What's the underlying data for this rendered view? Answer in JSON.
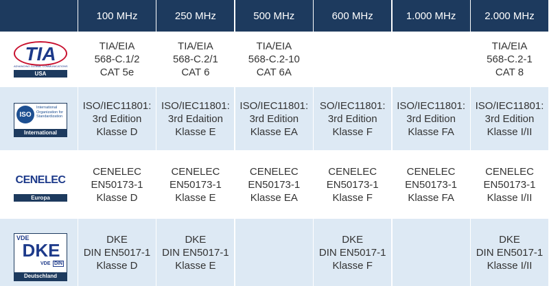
{
  "table": {
    "columns": [
      "100 MHz",
      "250 MHz",
      "500 MHz",
      "600 MHz",
      "1.000 MHz",
      "2.000 MHz"
    ],
    "rows": [
      {
        "logo": {
          "name": "TIA",
          "tagline": "ADVANCING GLOBAL COMMUNICATIONS"
        },
        "region": "USA",
        "cells": [
          [
            "TIA/EIA",
            "568-C.1/2",
            "CAT 5e"
          ],
          [
            "TIA/EIA",
            "568-C.2/1",
            "CAT 6"
          ],
          [
            "TIA/EIA",
            "568-C.2-10",
            "CAT 6A"
          ],
          null,
          null,
          [
            "TIA/EIA",
            "568-C.2-1",
            "CAT 8"
          ]
        ]
      },
      {
        "logo": {
          "name": "ISO",
          "text": "International Organization for Standardization"
        },
        "region": "International",
        "cells": [
          [
            "ISO/IEC11801:",
            "3rd Edition",
            "Klasse D"
          ],
          [
            "ISO/IEC11801:",
            "3rd Edaition",
            "Klasse E"
          ],
          [
            "ISO/IEC11801:",
            "3rd Edition",
            "Klasse EA"
          ],
          [
            "SO/IEC11801:",
            "3rd Edition",
            "Klasse F"
          ],
          [
            "ISO/IEC11801:",
            "3rd Edition",
            "Klasse FA"
          ],
          [
            "ISO/IEC11801:",
            "3rd Edition",
            "Klasse I/II"
          ]
        ]
      },
      {
        "logo": {
          "name": "CENELEC"
        },
        "region": "Europa",
        "cells": [
          [
            "CENELEC",
            "EN50173-1",
            "Klasse D"
          ],
          [
            "CENELEC",
            "EN50173-1",
            "Klasse E"
          ],
          [
            "CENELEC",
            "EN50173-1",
            "Klasse EA"
          ],
          [
            "CENELEC",
            "EN50173-1",
            "Klasse F"
          ],
          [
            "CENELEC",
            "EN50173-1",
            "Klasse FA"
          ],
          [
            "CENELEC",
            "EN50173-1",
            "Klasse I/II"
          ]
        ]
      },
      {
        "logo": {
          "top": "VDE",
          "name": "DKE",
          "bottom": "VDE",
          "badge": "DIN"
        },
        "region": "Deutschland",
        "cells": [
          [
            "DKE",
            "DIN EN5017-1",
            "Klasse D"
          ],
          [
            "DKE",
            "DIN EN5017-1",
            "Klasse E"
          ],
          null,
          [
            "DKE",
            "DIN EN5017-1",
            "Klasse F"
          ],
          null,
          [
            "DKE",
            "DIN EN5017-1",
            "Klasse I/II"
          ]
        ]
      }
    ]
  }
}
